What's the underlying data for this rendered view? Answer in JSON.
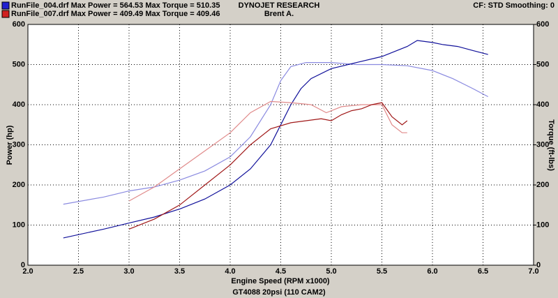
{
  "chart_data": {
    "type": "line",
    "title": "DYNOJET RESEARCH",
    "subtitle": "Brent A.",
    "settings_text": "CF: STD  Smoothing: 0",
    "footer": "GT4088 20psi (110 CAM2)",
    "x_label": "Engine Speed (RPM x1000)",
    "y_label": "Power (hp)",
    "y2_label": "Torque (ft-lbs)",
    "max_power_label": "Max Power =",
    "max_torque_label": "Max Torque =",
    "grid": true,
    "xlim": [
      2.0,
      7.0
    ],
    "xticks": [
      {
        "value": 2.0,
        "label": "2.0"
      },
      {
        "value": 2.5,
        "label": "2.5"
      },
      {
        "value": 3.0,
        "label": "3.0"
      },
      {
        "value": 3.5,
        "label": "3.5"
      },
      {
        "value": 4.0,
        "label": "4.0"
      },
      {
        "value": 4.5,
        "label": "4.5"
      },
      {
        "value": 5.0,
        "label": "5.0"
      },
      {
        "value": 5.5,
        "label": "5.5"
      },
      {
        "value": 6.0,
        "label": "6.0"
      },
      {
        "value": 6.5,
        "label": "6.5"
      },
      {
        "value": 7.0,
        "label": "7.0"
      }
    ],
    "ylim": [
      0,
      600
    ],
    "yticks": [
      0,
      100,
      200,
      300,
      400,
      500,
      600
    ],
    "y2lim": [
      0,
      600
    ],
    "y2ticks": [
      0,
      100,
      200,
      300,
      400,
      500,
      600
    ],
    "runs": [
      {
        "name": "RunFile_004.drf",
        "color": "#2020d0",
        "max_power": 564.53,
        "max_torque": 510.35,
        "power": {
          "color": "#10109a",
          "x": [
            2.35,
            2.75,
            3.0,
            3.25,
            3.5,
            3.75,
            4.0,
            4.2,
            4.4,
            4.5,
            4.6,
            4.7,
            4.8,
            5.0,
            5.25,
            5.5,
            5.75,
            5.85,
            6.0,
            6.1,
            6.25,
            6.4,
            6.55
          ],
          "values": [
            68,
            90,
            105,
            120,
            140,
            165,
            200,
            240,
            300,
            350,
            400,
            440,
            465,
            490,
            505,
            520,
            545,
            560,
            555,
            550,
            545,
            535,
            525
          ]
        },
        "torque": {
          "color": "#8a8ae0",
          "axis": "y2",
          "x": [
            2.35,
            2.75,
            3.0,
            3.25,
            3.5,
            3.75,
            4.0,
            4.2,
            4.4,
            4.5,
            4.6,
            4.75,
            5.0,
            5.25,
            5.5,
            5.75,
            6.0,
            6.2,
            6.4,
            6.55
          ],
          "values": [
            152,
            170,
            185,
            195,
            212,
            235,
            270,
            320,
            400,
            460,
            495,
            505,
            505,
            500,
            500,
            497,
            485,
            465,
            440,
            420
          ]
        }
      },
      {
        "name": "RunFile_007.drf",
        "color": "#d02020",
        "max_power": 409.49,
        "max_torque": 409.46,
        "power": {
          "color": "#a01818",
          "x": [
            3.0,
            3.25,
            3.5,
            3.75,
            4.0,
            4.2,
            4.4,
            4.6,
            4.75,
            4.9,
            5.0,
            5.1,
            5.2,
            5.3,
            5.4,
            5.5,
            5.6,
            5.7,
            5.75
          ],
          "values": [
            90,
            115,
            150,
            200,
            250,
            300,
            340,
            355,
            360,
            365,
            360,
            375,
            385,
            390,
            400,
            405,
            370,
            350,
            360
          ]
        },
        "torque": {
          "color": "#e08a8a",
          "axis": "y2",
          "x": [
            3.0,
            3.25,
            3.5,
            3.75,
            4.0,
            4.2,
            4.4,
            4.6,
            4.8,
            4.95,
            5.1,
            5.3,
            5.5,
            5.6,
            5.7,
            5.75
          ],
          "values": [
            160,
            195,
            240,
            285,
            330,
            380,
            408,
            405,
            400,
            380,
            395,
            400,
            400,
            350,
            330,
            330
          ]
        }
      }
    ]
  }
}
